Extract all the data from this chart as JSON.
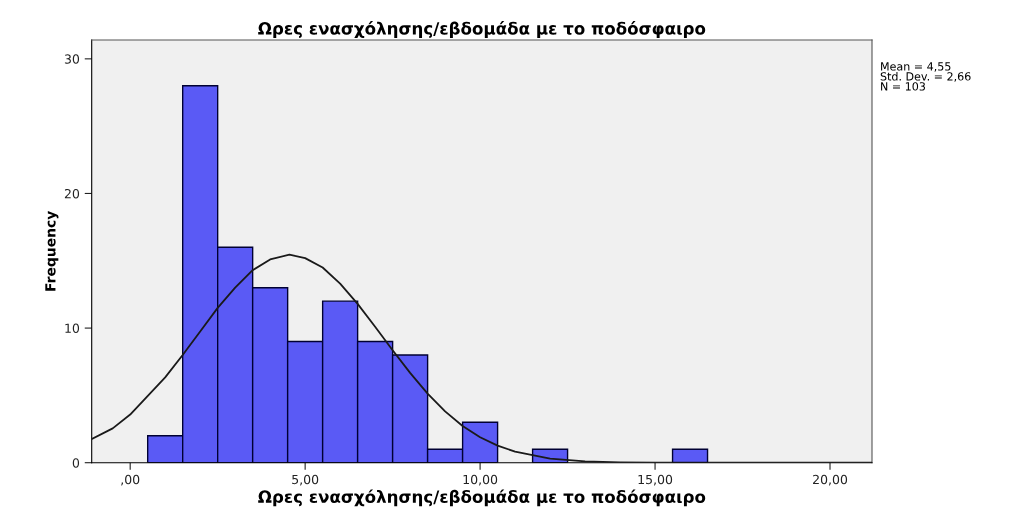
{
  "chart_data": {
    "type": "histogram",
    "title": "Ωρες ενασχόλησης/εβδομάδα με το ποδόσφαιρο",
    "xlabel": "Ωρες ενασχόλησης/εβδομάδα με το ποδόσφαιρο",
    "ylabel": "Frequency",
    "bins": [
      0.5,
      1.5,
      2.5,
      3.5,
      4.5,
      5.5,
      6.5,
      7.5,
      8.5,
      9.5,
      10.5,
      11.5,
      12.5,
      13.5,
      14.5,
      15.5,
      16.5
    ],
    "values": [
      2,
      28,
      16,
      13,
      9,
      12,
      9,
      8,
      1,
      3,
      0,
      1,
      0,
      0,
      0,
      1
    ],
    "color": "#5a5af5",
    "series": [
      {
        "type": "line",
        "color": "#1a1a1a",
        "x": [
          -1.1,
          -0.5,
          0,
          1,
          1.5,
          2,
          2.5,
          3,
          3.5,
          4,
          4.55,
          5,
          5.5,
          6,
          6.5,
          7,
          7.5,
          8,
          8.5,
          9,
          9.5,
          10,
          10.5,
          11,
          12,
          13,
          14,
          15,
          16,
          18,
          20,
          21.2
        ],
        "values": [
          1.75,
          2.55,
          3.58,
          6.34,
          8.0,
          9.75,
          11.5,
          13.0,
          14.3,
          15.1,
          15.45,
          15.2,
          14.5,
          13.3,
          11.8,
          10.1,
          8.35,
          6.67,
          5.13,
          3.81,
          2.73,
          1.89,
          1.27,
          0.82,
          0.31,
          0.1,
          0.03,
          0,
          0,
          0,
          0,
          0
        ]
      }
    ],
    "xlim": [
      -1.1,
      21.2
    ],
    "ylim": [
      0,
      31.4
    ],
    "xticks": [
      {
        "value": 0,
        "label": ",00"
      },
      {
        "value": 5,
        "label": "5,00"
      },
      {
        "value": 10,
        "label": "10,00"
      },
      {
        "value": 15,
        "label": "15,00"
      },
      {
        "value": 20,
        "label": "20,00"
      }
    ],
    "yticks": [
      0,
      10,
      20,
      30
    ],
    "grid": false,
    "legend": false,
    "annotations": [
      "Mean = 4,55",
      "Std. Dev. = 2,66",
      "N = 103"
    ]
  }
}
